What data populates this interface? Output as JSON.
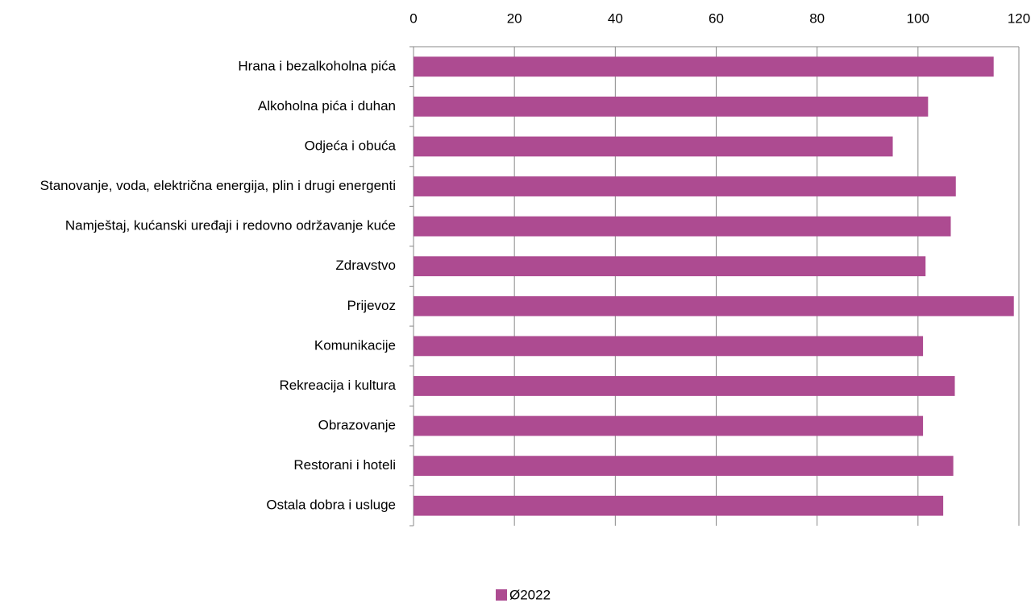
{
  "chart_data": {
    "type": "barh",
    "categories": [
      "Hrana i bezalkoholna pića",
      "Alkoholna pića i duhan",
      "Odjeća i obuća",
      "Stanovanje, voda, električna energija, plin i drugi energenti",
      "Namještaj, kućanski uređaji i redovno održavanje kuće",
      "Zdravstvo",
      "Prijevoz",
      "Komunikacije",
      "Rekreacija i kultura",
      "Obrazovanje",
      "Restorani i hoteli",
      "Ostala dobra i usluge"
    ],
    "series": [
      {
        "name": "Ø2022",
        "color": "#ad4b91",
        "values": [
          115,
          102,
          95,
          107.5,
          106.5,
          101.5,
          119,
          101,
          107.3,
          101,
          107,
          105
        ]
      }
    ],
    "xlim": [
      0,
      120
    ],
    "xticks": [
      0,
      20,
      40,
      60,
      80,
      100,
      120
    ],
    "grid": false,
    "legend": "bottom"
  }
}
